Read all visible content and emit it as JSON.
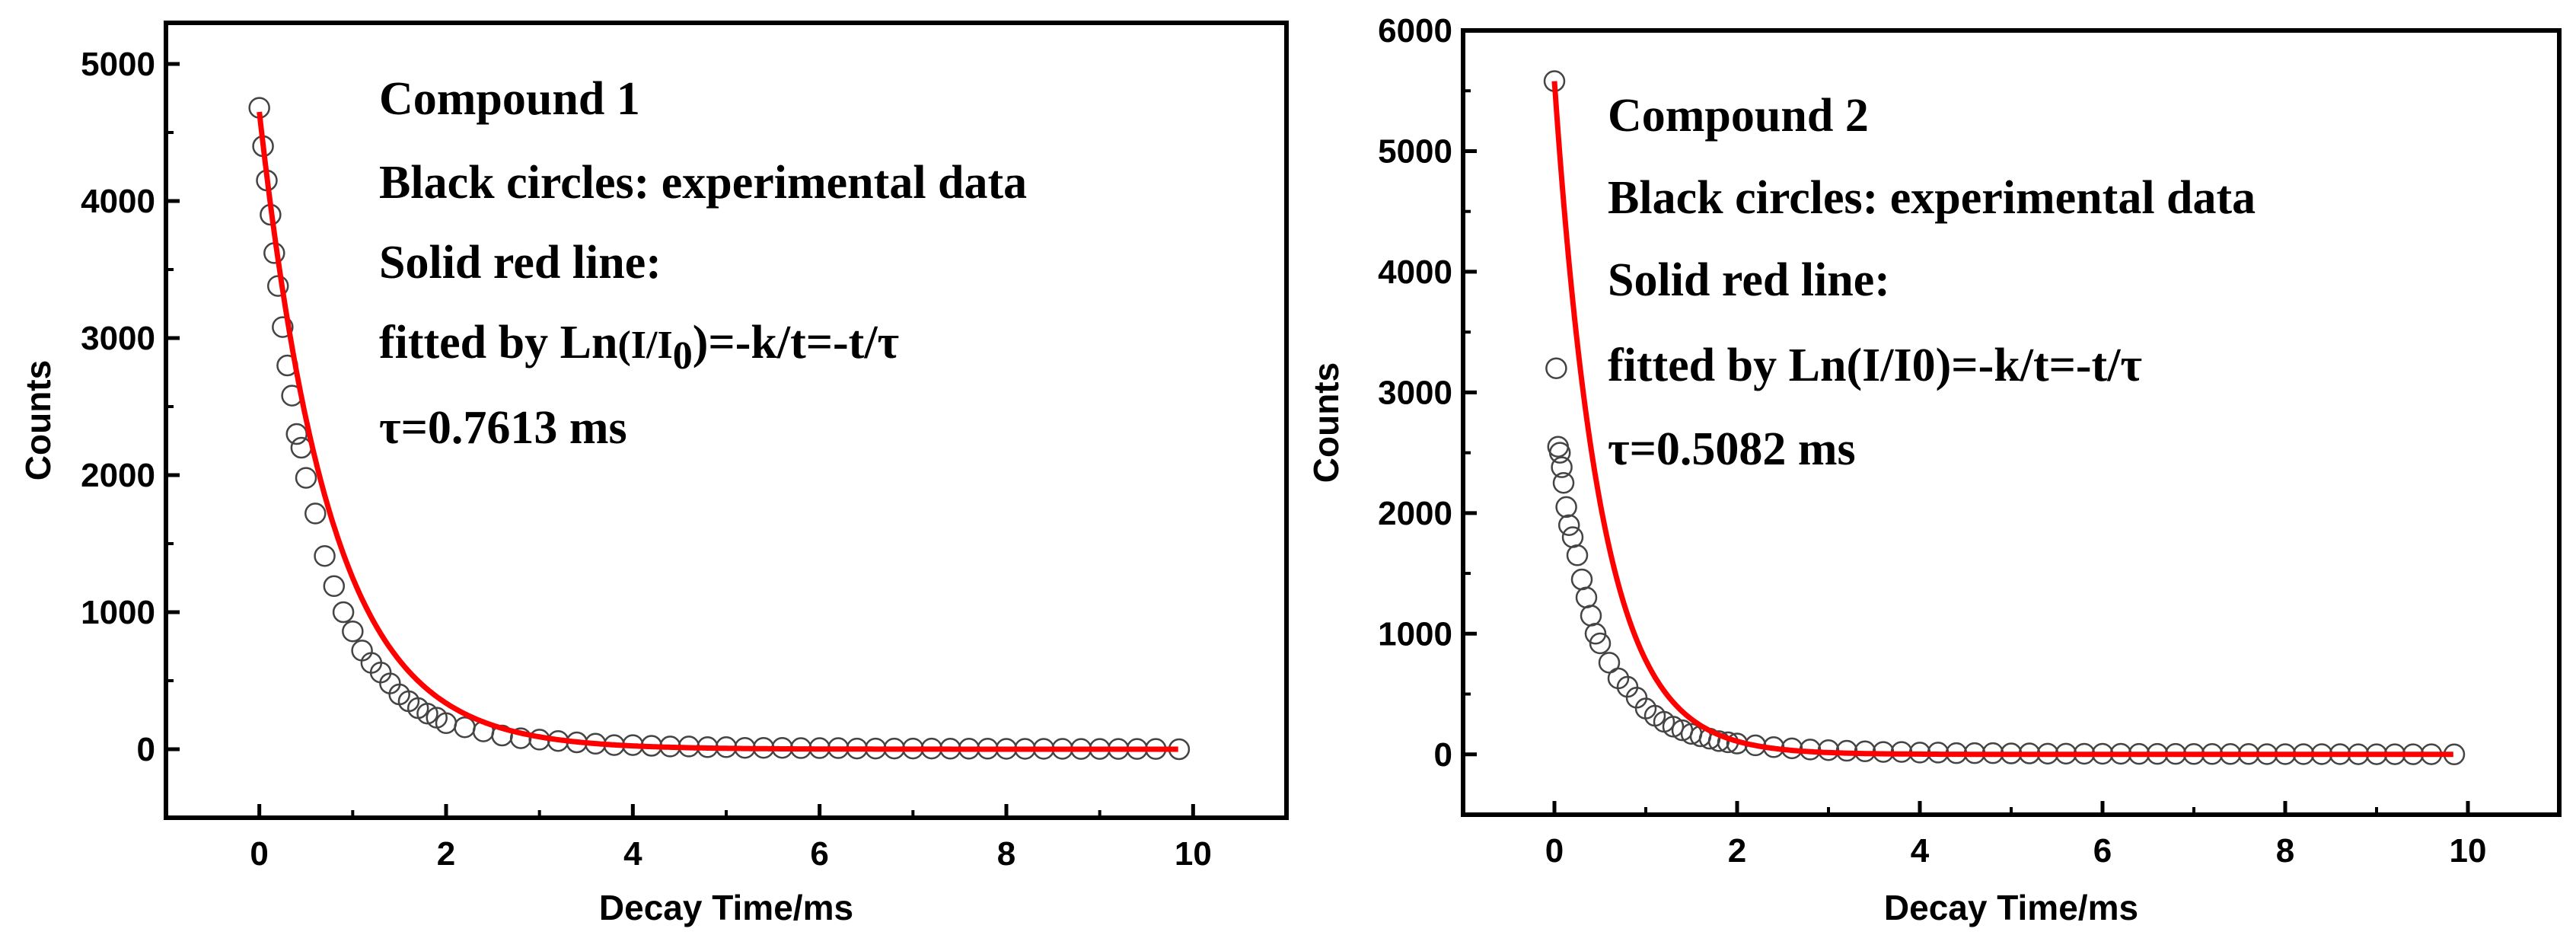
{
  "chart_data": [
    {
      "type": "scatter",
      "xlabel": "Decay Time/ms",
      "ylabel": "Counts",
      "xlim": [
        -1,
        11
      ],
      "ylim": [
        -500,
        5300
      ],
      "xticks": [
        0,
        2,
        4,
        6,
        8,
        10
      ],
      "xtick_labels": [
        "0",
        "2",
        "4",
        "6",
        "8",
        "10"
      ],
      "yticks": [
        0,
        1000,
        2000,
        3000,
        4000,
        5000
      ],
      "ytick_labels": [
        "0",
        "1000",
        "2000",
        "3000",
        "4000",
        "5000"
      ],
      "annotations": {
        "title": "Compound 1",
        "line1": "Black circles: experimental data",
        "line2": "Solid red line:",
        "fit_prefix": "fitted by Ln",
        "fit_ratio": "(I/I",
        "fit_sub": "0",
        "fit_suffix": ")=-k/t=-t/τ",
        "tau": "τ=0.7613 ms"
      },
      "fit": {
        "amplitude": 4650,
        "tau_ms": 0.7613,
        "baseline": 0
      },
      "series": [
        {
          "name": "experimental data",
          "marker": "open circle",
          "color": "#000000",
          "x": [
            0,
            0.04,
            0.08,
            0.12,
            0.16,
            0.2,
            0.25,
            0.3,
            0.35,
            0.4,
            0.45,
            0.5,
            0.6,
            0.7,
            0.8,
            0.9,
            1.0,
            1.1,
            1.2,
            1.3,
            1.4,
            1.5,
            1.6,
            1.7,
            1.8,
            1.9,
            2.0,
            2.2,
            2.4,
            2.6,
            2.8,
            3.0,
            3.2,
            3.4,
            3.6,
            3.8,
            4.0,
            4.2,
            4.4,
            4.6,
            4.8,
            5.0,
            5.2,
            5.4,
            5.6,
            5.8,
            6.0,
            6.2,
            6.4,
            6.6,
            6.8,
            7.0,
            7.2,
            7.4,
            7.6,
            7.8,
            8.0,
            8.2,
            8.4,
            8.6,
            8.8,
            9.0,
            9.2,
            9.4,
            9.6,
            9.85
          ],
          "y": [
            4680,
            4400,
            4150,
            3900,
            3620,
            3380,
            3080,
            2800,
            2580,
            2300,
            2200,
            1980,
            1720,
            1410,
            1190,
            1000,
            860,
            720,
            630,
            560,
            480,
            400,
            350,
            300,
            260,
            230,
            190,
            160,
            130,
            100,
            80,
            70,
            60,
            50,
            40,
            30,
            30,
            25,
            20,
            20,
            15,
            15,
            10,
            10,
            10,
            8,
            8,
            8,
            5,
            5,
            5,
            5,
            5,
            4,
            4,
            4,
            3,
            3,
            3,
            3,
            2,
            2,
            2,
            2,
            2,
            0
          ]
        },
        {
          "name": "fitted",
          "style": "solid line",
          "color": "#ff0000"
        }
      ]
    },
    {
      "type": "scatter",
      "xlabel": "Decay Time/ms",
      "ylabel": "Counts",
      "xlim": [
        -1,
        11
      ],
      "ylim": [
        -500,
        6000
      ],
      "xticks": [
        0,
        2,
        4,
        6,
        8,
        10
      ],
      "xtick_labels": [
        "0",
        "2",
        "4",
        "6",
        "8",
        "10"
      ],
      "yticks": [
        0,
        1000,
        2000,
        3000,
        4000,
        5000,
        6000
      ],
      "ytick_labels": [
        "0",
        "1000",
        "2000",
        "3000",
        "4000",
        "5000",
        "6000"
      ],
      "annotations": {
        "title": "Compound 2",
        "line1": "Black circles: experimental data",
        "line2": "Solid red line:",
        "fit_line": "fitted by Ln(I/I0)=-k/t=-t/τ",
        "tau": "τ=0.5082 ms"
      },
      "fit": {
        "amplitude": 5580,
        "tau_ms": 0.5082,
        "baseline": 0
      },
      "series": [
        {
          "name": "experimental data",
          "marker": "open circle",
          "color": "#000000",
          "x": [
            0,
            0.02,
            0.04,
            0.06,
            0.08,
            0.1,
            0.13,
            0.16,
            0.2,
            0.25,
            0.3,
            0.35,
            0.4,
            0.45,
            0.5,
            0.6,
            0.7,
            0.8,
            0.9,
            1.0,
            1.1,
            1.2,
            1.3,
            1.4,
            1.5,
            1.6,
            1.7,
            1.8,
            1.9,
            2.0,
            2.2,
            2.4,
            2.6,
            2.8,
            3.0,
            3.2,
            3.4,
            3.6,
            3.8,
            4.0,
            4.2,
            4.4,
            4.6,
            4.8,
            5.0,
            5.2,
            5.4,
            5.6,
            5.8,
            6.0,
            6.2,
            6.4,
            6.6,
            6.8,
            7.0,
            7.2,
            7.4,
            7.6,
            7.8,
            8.0,
            8.2,
            8.4,
            8.6,
            8.8,
            9.0,
            9.2,
            9.4,
            9.6,
            9.85
          ],
          "y": [
            5580,
            3200,
            2550,
            2500,
            2380,
            2250,
            2050,
            1900,
            1800,
            1650,
            1450,
            1300,
            1150,
            1000,
            920,
            760,
            630,
            560,
            470,
            380,
            320,
            270,
            230,
            200,
            170,
            150,
            130,
            110,
            100,
            90,
            75,
            60,
            50,
            40,
            35,
            30,
            25,
            20,
            20,
            15,
            15,
            10,
            10,
            10,
            8,
            8,
            6,
            6,
            5,
            5,
            5,
            4,
            4,
            4,
            3,
            3,
            3,
            3,
            2,
            2,
            2,
            2,
            2,
            1,
            1,
            1,
            1,
            1,
            0
          ]
        },
        {
          "name": "fitted",
          "style": "solid line",
          "color": "#ff0000"
        }
      ]
    }
  ]
}
